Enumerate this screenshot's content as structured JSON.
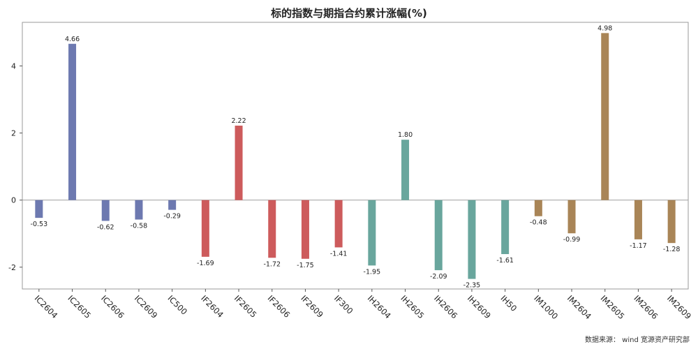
{
  "chart_data": {
    "type": "bar",
    "title": "标的指数与期指合约累计涨幅(%)",
    "xlabel": "",
    "ylabel": "",
    "ylim": [
      -2.65,
      5.3
    ],
    "yticks": [
      -2,
      0,
      2,
      4
    ],
    "grid": false,
    "legend": "none",
    "categories": [
      "IC2604",
      "IC2605",
      "IC2606",
      "IC2609",
      "IC500",
      "IF2604",
      "IF2605",
      "IF2606",
      "IF2609",
      "IF300",
      "IH2604",
      "IH2605",
      "IH2606",
      "IH2609",
      "IH50",
      "IM1000",
      "IM2604",
      "IM2605",
      "IM2606",
      "IM2609"
    ],
    "values": [
      -0.53,
      4.66,
      -0.62,
      -0.58,
      -0.29,
      -1.69,
      2.22,
      -1.72,
      -1.75,
      -1.41,
      -1.95,
      1.8,
      -2.09,
      -2.35,
      -1.61,
      -0.48,
      -0.99,
      4.98,
      -1.17,
      -1.28
    ],
    "data_labels": [
      "-0.53",
      "4.66",
      "-0.62",
      "-0.58",
      "-0.29",
      "-1.69",
      "2.22",
      "-1.72",
      "-1.75",
      "-1.41",
      "-1.95",
      "1.80",
      "-2.09",
      "-2.35",
      "-1.61",
      "-0.48",
      "-0.99",
      "4.98",
      "-1.17",
      "-1.28"
    ],
    "group_colors": {
      "IC": "#6d79b0",
      "IF": "#cd5b5c",
      "IH": "#69a69d",
      "IM": "#a98557"
    }
  },
  "source_note": "数据来源：  wind  宽源资产研究部"
}
